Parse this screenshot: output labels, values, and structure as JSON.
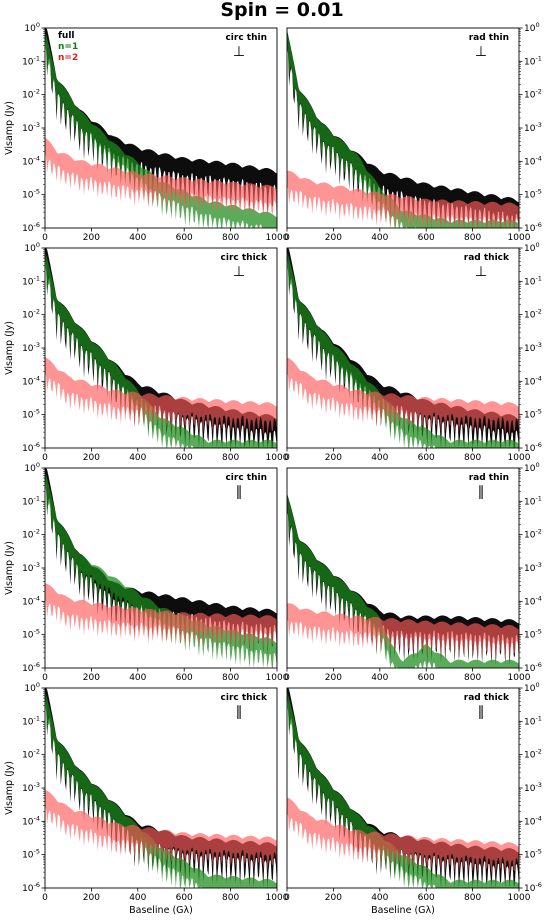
{
  "chart_data": {
    "type": "line",
    "title": "Spin = 0.01",
    "xlabel": "Baseline (Gλ)",
    "ylabel": "Visamp (Jy)",
    "xlim": [
      0,
      1000
    ],
    "ylim": [
      1e-06,
      1
    ],
    "yscale": "log",
    "xticks": [
      "0",
      "200",
      "400",
      "600",
      "800",
      "1000"
    ],
    "yticks": [
      "10^-6",
      "10^-5",
      "10^-4",
      "10^-3",
      "10^-2",
      "10^-1",
      "10^0"
    ],
    "grid": false,
    "legend": {
      "placement": "top-left of first panel",
      "entries": [
        {
          "label": "full",
          "color": "#000000"
        },
        {
          "label": "n=1",
          "color": "#1a7a1a"
        },
        {
          "label": "n=2",
          "color": "#e02020"
        }
      ]
    },
    "series_colors": {
      "full": "#000000",
      "n1": "#1a8a1a",
      "n2": "#ff5a5a"
    },
    "panels": [
      {
        "label": "circ thin",
        "symbol": "⊥",
        "full": {
          "anchors": [
            [
              0,
              1.0
            ],
            [
              50,
              0.02
            ],
            [
              150,
              0.002
            ],
            [
              300,
              0.0003
            ],
            [
              400,
              0.00015
            ],
            [
              500,
              0.0001
            ],
            [
              600,
              7e-05
            ],
            [
              800,
              5e-05
            ],
            [
              1000,
              3e-05
            ]
          ]
        },
        "n1": {
          "anchors": [
            [
              0,
              0.5
            ],
            [
              50,
              0.02
            ],
            [
              150,
              0.002
            ],
            [
              300,
              0.0002
            ],
            [
              500,
              1.5e-05
            ],
            [
              700,
              4e-06
            ],
            [
              1000,
              1.5e-06
            ]
          ]
        },
        "n2": {
          "anchors": [
            [
              0,
              0.0003
            ],
            [
              50,
              0.00012
            ],
            [
              150,
              6e-05
            ],
            [
              400,
              2.5e-05
            ],
            [
              700,
              1.5e-05
            ],
            [
              1000,
              1e-05
            ]
          ]
        }
      },
      {
        "label": "rad thin",
        "symbol": "⊥",
        "full": {
          "anchors": [
            [
              0,
              0.5
            ],
            [
              50,
              0.01
            ],
            [
              150,
              0.0008
            ],
            [
              300,
              0.0001
            ],
            [
              400,
              3e-05
            ],
            [
              600,
              1.2e-05
            ],
            [
              800,
              7e-06
            ],
            [
              1000,
              4e-06
            ]
          ]
        },
        "n1": {
          "anchors": [
            [
              0,
              0.5
            ],
            [
              50,
              0.01
            ],
            [
              150,
              0.0008
            ],
            [
              300,
              0.0001
            ],
            [
              400,
              1e-05
            ],
            [
              500,
              2e-06
            ],
            [
              700,
              1e-06
            ],
            [
              1000,
              1e-06
            ]
          ]
        },
        "n2": {
          "anchors": [
            [
              0,
              3e-05
            ],
            [
              100,
              1.5e-05
            ],
            [
              300,
              8e-06
            ],
            [
              600,
              4e-06
            ],
            [
              1000,
              3e-06
            ]
          ]
        }
      },
      {
        "label": "circ thick",
        "symbol": "⊥",
        "full": {
          "anchors": [
            [
              0,
              1.0
            ],
            [
              50,
              0.02
            ],
            [
              150,
              0.0025
            ],
            [
              300,
              0.0002
            ],
            [
              400,
              5e-05
            ],
            [
              600,
              1.5e-05
            ],
            [
              800,
              8e-06
            ],
            [
              1000,
              5e-06
            ]
          ]
        },
        "n1": {
          "anchors": [
            [
              0,
              0.5
            ],
            [
              50,
              0.02
            ],
            [
              150,
              0.0025
            ],
            [
              300,
              0.0002
            ],
            [
              500,
              5e-06
            ],
            [
              700,
              1e-06
            ],
            [
              1000,
              1e-06
            ]
          ]
        },
        "n2": {
          "anchors": [
            [
              0,
              0.0003
            ],
            [
              100,
              8e-05
            ],
            [
              300,
              3e-05
            ],
            [
              600,
              1.8e-05
            ],
            [
              1000,
              1.2e-05
            ]
          ]
        }
      },
      {
        "label": "rad thick",
        "symbol": "⊥",
        "full": {
          "anchors": [
            [
              0,
              1.0
            ],
            [
              50,
              0.02
            ],
            [
              150,
              0.002
            ],
            [
              300,
              0.0002
            ],
            [
              400,
              5e-05
            ],
            [
              600,
              1.5e-05
            ],
            [
              800,
              8e-06
            ],
            [
              1000,
              5e-06
            ]
          ]
        },
        "n1": {
          "anchors": [
            [
              0,
              0.5
            ],
            [
              50,
              0.02
            ],
            [
              150,
              0.002
            ],
            [
              300,
              0.00015
            ],
            [
              500,
              5e-06
            ],
            [
              700,
              1e-06
            ],
            [
              1000,
              1e-06
            ]
          ]
        },
        "n2": {
          "anchors": [
            [
              0,
              0.0003
            ],
            [
              100,
              8e-05
            ],
            [
              300,
              3e-05
            ],
            [
              600,
              1.8e-05
            ],
            [
              1000,
              1.2e-05
            ]
          ]
        }
      },
      {
        "label": "circ thin",
        "symbol": "∥",
        "full": {
          "anchors": [
            [
              0,
              1.0
            ],
            [
              50,
              0.02
            ],
            [
              150,
              0.0015
            ],
            [
              300,
              0.0002
            ],
            [
              400,
              0.00012
            ],
            [
              600,
              7e-05
            ],
            [
              800,
              4e-05
            ],
            [
              1000,
              3e-05
            ]
          ]
        },
        "n1": {
          "anchors": [
            [
              0,
              0.5
            ],
            [
              50,
              0.02
            ],
            [
              150,
              0.0015
            ],
            [
              300,
              0.0003
            ],
            [
              500,
              4e-05
            ],
            [
              700,
              1.2e-05
            ],
            [
              1000,
              4e-06
            ]
          ]
        },
        "n2": {
          "anchors": [
            [
              0,
              0.0002
            ],
            [
              100,
              7e-05
            ],
            [
              300,
              4e-05
            ],
            [
              600,
              2.5e-05
            ],
            [
              1000,
              2e-05
            ]
          ]
        }
      },
      {
        "label": "rad thin",
        "symbol": "∥",
        "full": {
          "anchors": [
            [
              0,
              0.1
            ],
            [
              50,
              0.005
            ],
            [
              150,
              0.0008
            ],
            [
              300,
              0.0001
            ],
            [
              400,
              3e-05
            ],
            [
              500,
              2e-05
            ],
            [
              700,
              2e-05
            ],
            [
              1000,
              1.5e-05
            ]
          ]
        },
        "n1": {
          "anchors": [
            [
              0,
              0.1
            ],
            [
              50,
              0.005
            ],
            [
              150,
              0.0008
            ],
            [
              300,
              0.0001
            ],
            [
              400,
              2e-05
            ],
            [
              450,
              3e-06
            ],
            [
              500,
              1e-06
            ],
            [
              600,
              3e-06
            ],
            [
              700,
              1e-06
            ],
            [
              1000,
              1e-06
            ]
          ]
        },
        "n2": {
          "anchors": [
            [
              0,
              5e-05
            ],
            [
              100,
              3e-05
            ],
            [
              300,
              2e-05
            ],
            [
              600,
              1.4e-05
            ],
            [
              1000,
              1e-05
            ]
          ]
        }
      },
      {
        "label": "circ thick",
        "symbol": "∥",
        "full": {
          "anchors": [
            [
              0,
              1.0
            ],
            [
              50,
              0.02
            ],
            [
              150,
              0.002
            ],
            [
              300,
              0.0002
            ],
            [
              400,
              5e-05
            ],
            [
              600,
              2e-05
            ],
            [
              800,
              1.5e-05
            ],
            [
              1000,
              1.2e-05
            ]
          ]
        },
        "n1": {
          "anchors": [
            [
              0,
              0.5
            ],
            [
              50,
              0.02
            ],
            [
              150,
              0.002
            ],
            [
              300,
              0.0002
            ],
            [
              500,
              1e-05
            ],
            [
              700,
              1.5e-06
            ],
            [
              1000,
              1e-06
            ]
          ]
        },
        "n2": {
          "anchors": [
            [
              0,
              0.0005
            ],
            [
              100,
              0.00015
            ],
            [
              300,
              5e-05
            ],
            [
              600,
              2.5e-05
            ],
            [
              1000,
              1.8e-05
            ]
          ]
        }
      },
      {
        "label": "rad thick",
        "symbol": "∥",
        "full": {
          "anchors": [
            [
              0,
              1.0
            ],
            [
              50,
              0.02
            ],
            [
              150,
              0.0015
            ],
            [
              300,
              0.0001
            ],
            [
              400,
              3e-05
            ],
            [
              600,
              1.5e-05
            ],
            [
              800,
              1e-05
            ],
            [
              1000,
              8e-06
            ]
          ]
        },
        "n1": {
          "anchors": [
            [
              0,
              0.5
            ],
            [
              50,
              0.02
            ],
            [
              150,
              0.0015
            ],
            [
              300,
              0.0001
            ],
            [
              500,
              6e-06
            ],
            [
              700,
              1e-06
            ],
            [
              1000,
              1e-06
            ]
          ]
        },
        "n2": {
          "anchors": [
            [
              0,
              0.0003
            ],
            [
              100,
              8e-05
            ],
            [
              300,
              3e-05
            ],
            [
              600,
              1.8e-05
            ],
            [
              1000,
              1.2e-05
            ]
          ]
        }
      }
    ]
  }
}
